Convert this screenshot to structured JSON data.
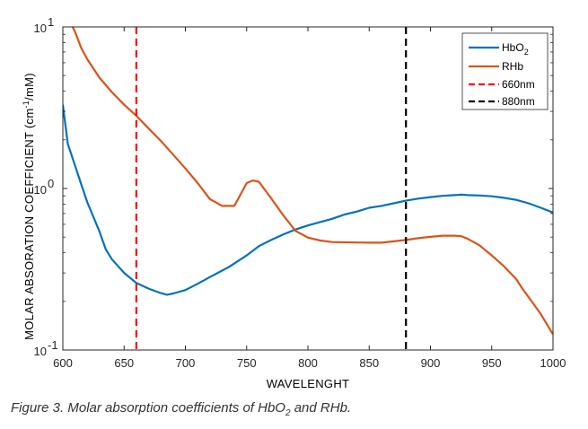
{
  "chart_data": {
    "type": "line",
    "xlabel": "WAVELENGHT",
    "ylabel_parts": [
      "MOLAR ABSORATION COEFFICIENT (cm",
      "-1",
      "/mM)"
    ],
    "xlim": [
      600,
      1000
    ],
    "ylim": [
      0.1,
      10
    ],
    "y_scale": "log",
    "grid": false,
    "legend_position": "top-right",
    "x_ticks": [
      "600",
      "650",
      "700",
      "750",
      "800",
      "850",
      "900",
      "950",
      "1000"
    ],
    "y_ticks": [
      {
        "value": 10,
        "base": "10",
        "exp": "1"
      },
      {
        "value": 1,
        "base": "10",
        "exp": "0"
      },
      {
        "value": 0.1,
        "base": "10",
        "exp": "-1"
      }
    ],
    "series": [
      {
        "name_base": "HbO",
        "name_sub": "2",
        "color": "#0072BD",
        "style": "solid",
        "x": [
          600,
          604,
          610,
          615,
          620,
          630,
          635,
          640,
          650,
          660,
          670,
          680,
          685,
          690,
          700,
          710,
          720,
          735,
          750,
          760,
          770,
          775,
          780,
          790,
          800,
          810,
          820,
          830,
          840,
          850,
          860,
          870,
          880,
          890,
          900,
          910,
          920,
          925,
          930,
          940,
          950,
          960,
          970,
          980,
          990,
          1000
        ],
        "y": [
          3.3,
          1.89,
          1.38,
          1.06,
          0.82,
          0.54,
          0.42,
          0.365,
          0.3,
          0.26,
          0.24,
          0.225,
          0.22,
          0.224,
          0.235,
          0.257,
          0.283,
          0.325,
          0.385,
          0.44,
          0.48,
          0.5,
          0.52,
          0.557,
          0.59,
          0.62,
          0.65,
          0.69,
          0.72,
          0.76,
          0.78,
          0.81,
          0.84,
          0.865,
          0.885,
          0.9,
          0.91,
          0.915,
          0.91,
          0.905,
          0.895,
          0.875,
          0.85,
          0.81,
          0.76,
          0.71
        ]
      },
      {
        "name": "RHb",
        "color": "#D95319",
        "style": "solid",
        "x": [
          608,
          610,
          615,
          620,
          630,
          640,
          650,
          660,
          670,
          680,
          690,
          700,
          710,
          720,
          730,
          740,
          750,
          755,
          760,
          770,
          780,
          790,
          800,
          810,
          820,
          830,
          840,
          850,
          860,
          870,
          880,
          890,
          900,
          910,
          920,
          925,
          930,
          940,
          950,
          960,
          970,
          975,
          980,
          990,
          1000
        ],
        "y": [
          10,
          9.3,
          7.4,
          6.3,
          4.85,
          3.95,
          3.3,
          2.82,
          2.35,
          1.97,
          1.62,
          1.33,
          1.08,
          0.86,
          0.78,
          0.78,
          1.08,
          1.12,
          1.1,
          0.87,
          0.68,
          0.545,
          0.497,
          0.476,
          0.466,
          0.464,
          0.463,
          0.462,
          0.462,
          0.471,
          0.48,
          0.492,
          0.502,
          0.51,
          0.51,
          0.507,
          0.49,
          0.445,
          0.385,
          0.33,
          0.275,
          0.24,
          0.213,
          0.167,
          0.125
        ]
      },
      {
        "name": "660nm",
        "color": "#ff0000",
        "style": "dashed",
        "vline_x": 660
      },
      {
        "name": "880nm",
        "color": "#000000",
        "style": "dashed",
        "vline_x": 880
      }
    ]
  },
  "caption": {
    "text_before": "Figure 3. Molar absorption coefficients of HbO",
    "sub": "2",
    "text_after": " and RHb."
  }
}
